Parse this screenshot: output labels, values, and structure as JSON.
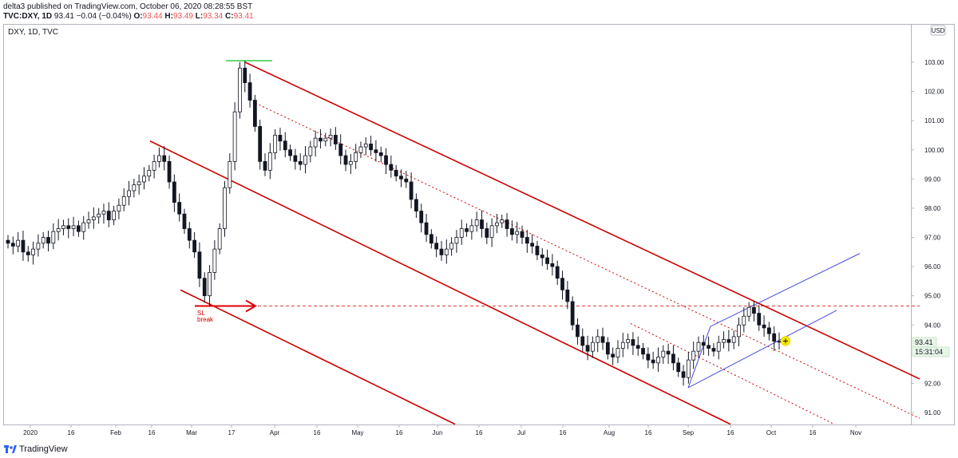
{
  "header": {
    "publisher_line": "delta3 published on TradingView.com, October 06, 2020 08:28:55 BST",
    "symbol": "TVC:DXY, 1D",
    "last": "93.41",
    "change": "−0.04 (−0.04%)",
    "o_label": "O:",
    "o_value": "93.44",
    "h_label": "H:",
    "h_value": "93.49",
    "l_label": "L:",
    "l_value": "93.34",
    "c_label": "C:",
    "c_value": "93.41"
  },
  "footer": {
    "brand": "TradingView"
  },
  "colors": {
    "up": "#ffffff",
    "down": "#131722",
    "channel": "#cc0000",
    "blue": "#4a4ae0",
    "green": "#2ecc40",
    "highlight": "#f5e800"
  },
  "chart_data": {
    "type": "candlestick",
    "title": "DXY, 1D, TVC",
    "currency": "USD",
    "ylim": [
      90.6,
      104.0
    ],
    "y_ticks": [
      "91.00",
      "92.00",
      "93.00",
      "94.00",
      "95.00",
      "96.00",
      "97.00",
      "98.00",
      "99.00",
      "100.00",
      "101.00",
      "102.00",
      "103.00"
    ],
    "x_ticks": [
      "2020",
      "16",
      "Feb",
      "16",
      "Mar",
      "17",
      "Apr",
      "16",
      "May",
      "16",
      "Jun",
      "16",
      "Jul",
      "16",
      "Aug",
      "16",
      "Sep",
      "16",
      "Oct",
      "16",
      "Nov"
    ],
    "last_price_label": "93.41",
    "countdown_label": "15:31:04",
    "annotation_sl": [
      "SL",
      "break"
    ],
    "series": [
      {
        "name": "DXY",
        "close": [
          96.8,
          96.7,
          96.9,
          96.5,
          96.4,
          96.6,
          96.8,
          97.0,
          96.8,
          97.2,
          97.3,
          97.4,
          97.3,
          97.4,
          97.2,
          97.5,
          97.6,
          97.7,
          97.8,
          97.9,
          97.6,
          97.9,
          98.1,
          98.4,
          98.6,
          98.8,
          98.9,
          99.1,
          99.3,
          99.6,
          99.8,
          99.6,
          98.9,
          98.2,
          97.8,
          97.3,
          96.9,
          96.5,
          95.6,
          95.0,
          95.8,
          96.6,
          97.3,
          98.7,
          99.6,
          101.3,
          102.8,
          102.3,
          101.7,
          100.8,
          99.6,
          99.3,
          99.9,
          100.5,
          100.3,
          100.0,
          99.8,
          99.6,
          99.5,
          99.8,
          100.1,
          100.4,
          100.3,
          100.4,
          100.5,
          100.2,
          99.8,
          99.5,
          99.6,
          99.9,
          100.1,
          100.2,
          100.0,
          99.9,
          99.8,
          99.5,
          99.3,
          99.1,
          99.0,
          98.9,
          98.3,
          97.9,
          97.5,
          97.1,
          96.8,
          96.6,
          96.4,
          96.6,
          96.8,
          97.0,
          97.3,
          97.2,
          97.4,
          97.6,
          97.3,
          97.0,
          97.4,
          97.5,
          97.6,
          97.3,
          97.1,
          97.2,
          97.0,
          96.8,
          96.7,
          96.4,
          96.3,
          96.1,
          96.0,
          95.6,
          95.2,
          94.8,
          94.0,
          93.6,
          93.3,
          93.1,
          93.4,
          93.6,
          93.4,
          93.0,
          92.9,
          93.2,
          93.4,
          93.5,
          93.3,
          93.2,
          93.0,
          92.8,
          92.7,
          92.9,
          93.1,
          93.0,
          92.7,
          92.4,
          92.2,
          92.8,
          93.1,
          93.4,
          93.3,
          93.2,
          93.1,
          93.4,
          93.5,
          93.4,
          93.6,
          94.0,
          94.3,
          94.6,
          94.4,
          94.0,
          93.9,
          93.7,
          93.44,
          93.41
        ]
      }
    ]
  }
}
